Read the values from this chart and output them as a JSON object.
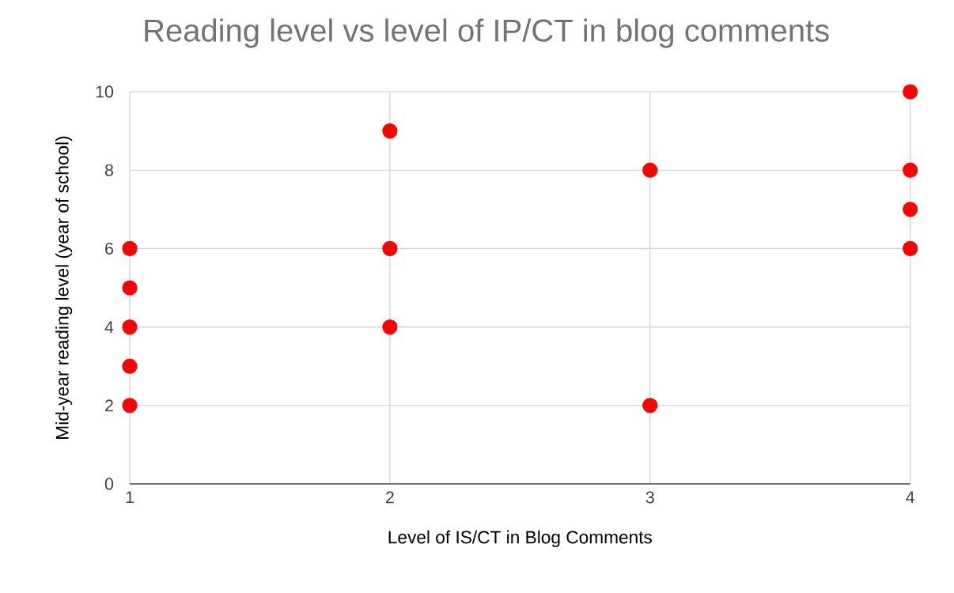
{
  "chart_data": {
    "type": "scatter",
    "title": "Reading level vs level of IP/CT in blog comments",
    "xlabel": "Level of IS/CT in Blog Comments",
    "ylabel": "Mid-year reading level (year of school)",
    "x": [
      1,
      1,
      1,
      1,
      1,
      2,
      2,
      2,
      3,
      3,
      4,
      4,
      4,
      4
    ],
    "series": [
      {
        "color": "#ff0000",
        "values": [
          6,
          5,
          4,
          3,
          2,
          9,
          6,
          4,
          8,
          2,
          10,
          8,
          7,
          6
        ]
      }
    ],
    "xlim": [
      1,
      4
    ],
    "xticks": [
      1,
      2,
      3,
      4
    ],
    "ylim": [
      0,
      10
    ],
    "yticks": [
      0,
      2,
      4,
      6,
      8,
      10
    ],
    "grid": true,
    "marker": "circle"
  }
}
